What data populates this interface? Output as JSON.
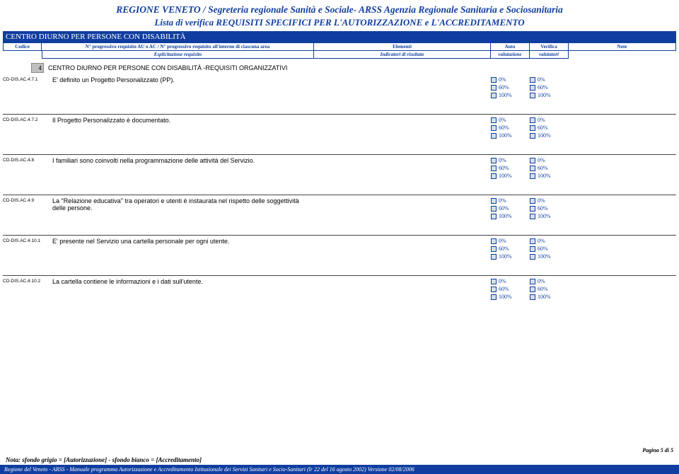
{
  "header": {
    "title": "REGIONE VENETO / Segreteria regionale Sanità e Sociale- ARSS Agenzia Regionale Sanitaria e Sociosanitaria",
    "subtitle": "Lista di verifica REQUISITI SPECIFICI PER L'AUTORIZZAZIONE e L'ACCREDITAMENTO",
    "bluebar": "CENTRO DIURNO PER PERSONE CON DISABILITÀ"
  },
  "columns": {
    "code": "Codice",
    "prog": "N° progressivo requisito AU o AC / N° progressivo requisito all'interno di ciascuna area",
    "prog_sub": "Esplicitazione requisito",
    "elem": "Elementi",
    "elem_sub": "Indicatori di risultato",
    "auto": "Auto",
    "auto_sub": "valutazione",
    "ver": "Verifica",
    "ver_sub": "valutatori",
    "note": "Note"
  },
  "section": {
    "num": "4",
    "label": "CENTRO DIURNO PER PERSONE CON DISABILITÀ -REQUISITI ORGANIZZATIVI"
  },
  "check_values": [
    "0%",
    "60%",
    "100%"
  ],
  "rows": [
    {
      "code": "CD-DIS.AC.4.7.1",
      "desc": "E' definito un Progetto Personalizzato (PP)."
    },
    {
      "code": "CD-DIS.AC.4.7.2",
      "desc": "Il Progetto Personalizzato è documentato."
    },
    {
      "code": "CD-DIS.AC.4.8",
      "desc": "I familiari sono coinvolti nella programmazione delle attività del Servizio."
    },
    {
      "code": "CD-DIS.AC.4.9",
      "desc": "La \"Relazione educativa\" tra operatori e utenti è instaurata nel rispetto delle soggettività delle persone."
    },
    {
      "code": "CD-DIS.AC.4.10.1",
      "desc": "E' presente nel Servizio una cartella personale per ogni utente."
    },
    {
      "code": "CD-DIS.AC.4.10.2",
      "desc": "La cartella contiene le informazioni e i dati sull'utente."
    }
  ],
  "footer": {
    "page": "Pagina 5 di 5",
    "note": "Nota: sfondo grigio = [Autorizzazione] - sfondo bianco = [Accreditamento]",
    "bar": "Regione del Veneto - ARSS - Manuale programma Autorizzazione e Accreditamento Istituzionale dei Servizi Sanitari e Socio-Sanitari (lr 22 del 16 agosto 2002) Versione 02/08/2006"
  },
  "colors": {
    "brand_blue": "#103ea0",
    "gray_fill": "#bfbfbf",
    "checkbox_fill": "#d6dff2"
  }
}
